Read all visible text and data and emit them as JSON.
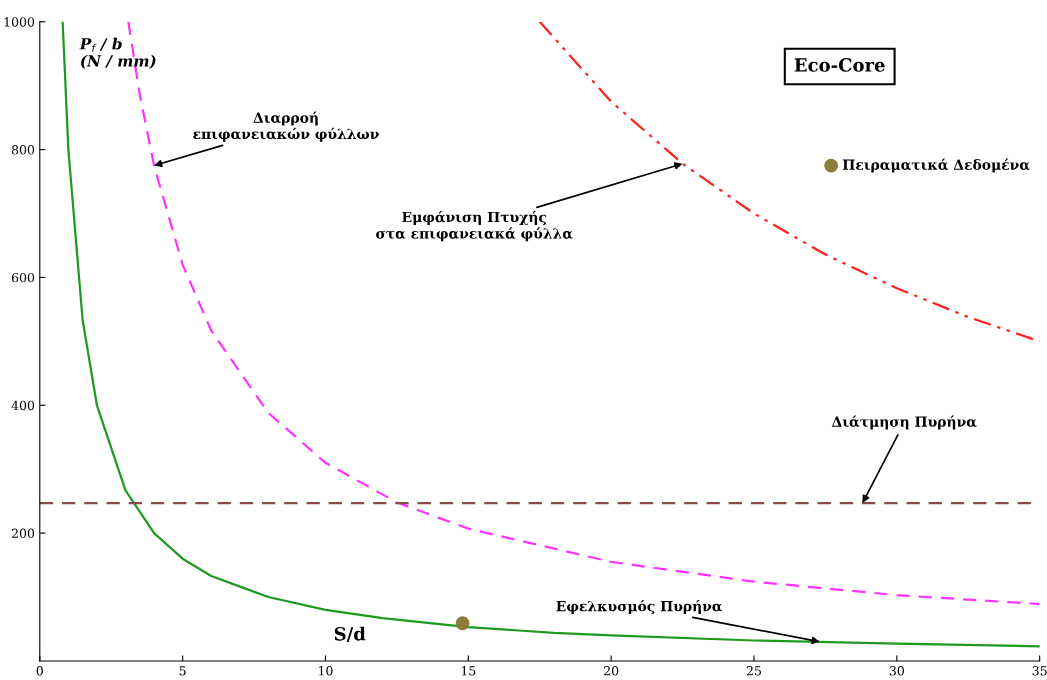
{
  "chart_data": {
    "type": "line",
    "xlabel": "S/d",
    "ylabel": "P$_{f}$ / b\n(N / mm)",
    "xlim": [
      0,
      35
    ],
    "ylim": [
      0,
      1000
    ],
    "xticks": [
      0,
      5,
      10,
      15,
      20,
      25,
      30,
      35
    ],
    "yticks": [
      200,
      400,
      600,
      800,
      1000
    ],
    "grid": false,
    "legend": false,
    "series": [
      {
        "color": "#1e9a1e",
        "line_style": "solid",
        "x": [
          0.8,
          1,
          1.5,
          2,
          3,
          4,
          5,
          6,
          8,
          10,
          12,
          15,
          18,
          20,
          25,
          30,
          35
        ],
        "values": [
          1000,
          800,
          533,
          400,
          267,
          200,
          160,
          133,
          100,
          80,
          67,
          53,
          44,
          40,
          32,
          27,
          23
        ]
      },
      {
        "color": "#ff33ff",
        "line_style": "dashed",
        "x": [
          3.1,
          3.5,
          4,
          5,
          6,
          8,
          10,
          12.5,
          15,
          20,
          25,
          30,
          35
        ],
        "values": [
          1000,
          886,
          775,
          620,
          517,
          388,
          310,
          248,
          207,
          155,
          124,
          103,
          89
        ]
      },
      {
        "color": "#ff2020",
        "line_style": "dashdot",
        "x": [
          17.5,
          20,
          22.5,
          25,
          27.5,
          30,
          32.5,
          35
        ],
        "values": [
          1000,
          875,
          778,
          700,
          636,
          583,
          538,
          500
        ]
      },
      {
        "type": "scatter",
        "marker": "circle",
        "name": "Πειραματικά Δεδομένα",
        "color": "#8b7d3a",
        "x": [
          14.8,
          27.7
        ],
        "values": [
          59,
          775
        ]
      }
    ],
    "ref_lines": [
      {
        "axis": "y",
        "value": 247,
        "color": "#8b4a4a",
        "line_style": "dashed"
      }
    ],
    "annotations": [
      {
        "text": "Διαρροή\nεπιφανειακών φύλλων",
        "x": 4,
        "y": 775
      },
      {
        "text": "Εμφάνιση Πτυχής\nστα επιφανειακά φύλλα",
        "x": 22.5,
        "y": 778
      },
      {
        "text": "Διάτμηση Πυρήνα",
        "x": 28.8,
        "y": 247
      },
      {
        "text": "Εφελκυσμός Πυρήνα",
        "x": 27.3,
        "y": 30
      },
      "Eco-Core"
    ]
  }
}
